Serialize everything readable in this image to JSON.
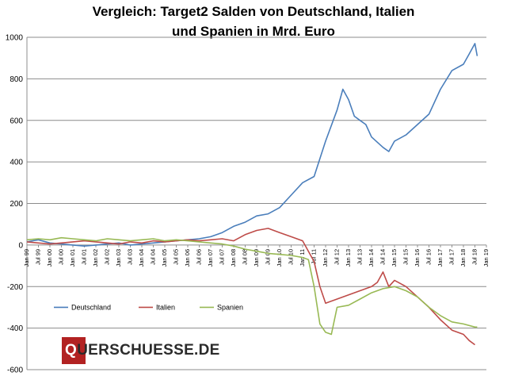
{
  "chart_data": {
    "type": "line",
    "title_lines": [
      "Vergleich: Target2 Salden von Deutschland, Italien",
      "und Spanien in Mrd. Euro"
    ],
    "ylim": [
      -600,
      1000
    ],
    "yticks": [
      1000,
      800,
      600,
      400,
      200,
      0,
      -200,
      -400,
      -600
    ],
    "xlim": [
      1999.0,
      2019.0
    ],
    "xticks": [
      {
        "label": "Jan 99",
        "x": 1999.0
      },
      {
        "label": "Jul 99",
        "x": 1999.5
      },
      {
        "label": "Jan 00",
        "x": 2000.0
      },
      {
        "label": "Jul 00",
        "x": 2000.5
      },
      {
        "label": "Jan 01",
        "x": 2001.0
      },
      {
        "label": "Jul 01",
        "x": 2001.5
      },
      {
        "label": "Jan 02",
        "x": 2002.0
      },
      {
        "label": "Jul 02",
        "x": 2002.5
      },
      {
        "label": "Jan 03",
        "x": 2003.0
      },
      {
        "label": "Jul 03",
        "x": 2003.5
      },
      {
        "label": "Jan 04",
        "x": 2004.0
      },
      {
        "label": "Jul 04",
        "x": 2004.5
      },
      {
        "label": "Jan 05",
        "x": 2005.0
      },
      {
        "label": "Jul 05",
        "x": 2005.5
      },
      {
        "label": "Jan 06",
        "x": 2006.0
      },
      {
        "label": "Jul 06",
        "x": 2006.5
      },
      {
        "label": "Jan 07",
        "x": 2007.0
      },
      {
        "label": "Jul 07",
        "x": 2007.5
      },
      {
        "label": "Jan 08",
        "x": 2008.0
      },
      {
        "label": "Jul 08",
        "x": 2008.5
      },
      {
        "label": "Jan 09",
        "x": 2009.0
      },
      {
        "label": "Jul 09",
        "x": 2009.5
      },
      {
        "label": "Jan 10",
        "x": 2010.0
      },
      {
        "label": "Jul 10",
        "x": 2010.5
      },
      {
        "label": "Jan 11",
        "x": 2011.0
      },
      {
        "label": "Jul 11",
        "x": 2011.5
      },
      {
        "label": "Jan 12",
        "x": 2012.0
      },
      {
        "label": "Jul 12",
        "x": 2012.5
      },
      {
        "label": "Jan 13",
        "x": 2013.0
      },
      {
        "label": "Jul 13",
        "x": 2013.5
      },
      {
        "label": "Jan 14",
        "x": 2014.0
      },
      {
        "label": "Jul 14",
        "x": 2014.5
      },
      {
        "label": "Jan 15",
        "x": 2015.0
      },
      {
        "label": "Jul 15",
        "x": 2015.5
      },
      {
        "label": "Jan 16",
        "x": 2016.0
      },
      {
        "label": "Jul 16",
        "x": 2016.5
      },
      {
        "label": "Jan 17",
        "x": 2017.0
      },
      {
        "label": "Jul 17",
        "x": 2017.5
      },
      {
        "label": "Jan 18",
        "x": 2018.0
      },
      {
        "label": "Jul 18",
        "x": 2018.5
      },
      {
        "label": "Jan 19",
        "x": 2019.0
      }
    ],
    "grid": true,
    "legend_position": "bottom-left",
    "series": [
      {
        "name": "Deutschland",
        "color": "#4a7ebb",
        "points": [
          [
            1999.0,
            15
          ],
          [
            1999.5,
            25
          ],
          [
            2000.0,
            10
          ],
          [
            2000.5,
            5
          ],
          [
            2001.0,
            0
          ],
          [
            2001.5,
            -5
          ],
          [
            2002.0,
            0
          ],
          [
            2002.5,
            5
          ],
          [
            2003.0,
            10
          ],
          [
            2003.5,
            0
          ],
          [
            2004.0,
            5
          ],
          [
            2004.5,
            10
          ],
          [
            2005.0,
            15
          ],
          [
            2005.5,
            20
          ],
          [
            2006.0,
            25
          ],
          [
            2006.5,
            30
          ],
          [
            2007.0,
            40
          ],
          [
            2007.5,
            60
          ],
          [
            2008.0,
            90
          ],
          [
            2008.5,
            110
          ],
          [
            2009.0,
            140
          ],
          [
            2009.5,
            150
          ],
          [
            2010.0,
            180
          ],
          [
            2010.5,
            240
          ],
          [
            2011.0,
            300
          ],
          [
            2011.5,
            330
          ],
          [
            2012.0,
            500
          ],
          [
            2012.5,
            650
          ],
          [
            2012.75,
            750
          ],
          [
            2013.0,
            700
          ],
          [
            2013.25,
            620
          ],
          [
            2013.5,
            600
          ],
          [
            2013.75,
            580
          ],
          [
            2014.0,
            520
          ],
          [
            2014.5,
            470
          ],
          [
            2014.75,
            450
          ],
          [
            2015.0,
            500
          ],
          [
            2015.5,
            530
          ],
          [
            2016.0,
            580
          ],
          [
            2016.5,
            630
          ],
          [
            2017.0,
            750
          ],
          [
            2017.5,
            840
          ],
          [
            2018.0,
            870
          ],
          [
            2018.25,
            920
          ],
          [
            2018.5,
            970
          ],
          [
            2018.6,
            910
          ]
        ]
      },
      {
        "name": "Italien",
        "color": "#be4b48",
        "points": [
          [
            1999.0,
            15
          ],
          [
            1999.5,
            10
          ],
          [
            2000.0,
            5
          ],
          [
            2000.5,
            10
          ],
          [
            2001.0,
            15
          ],
          [
            2001.5,
            20
          ],
          [
            2002.0,
            15
          ],
          [
            2002.5,
            10
          ],
          [
            2003.0,
            5
          ],
          [
            2003.5,
            15
          ],
          [
            2004.0,
            10
          ],
          [
            2004.5,
            20
          ],
          [
            2005.0,
            15
          ],
          [
            2005.5,
            20
          ],
          [
            2006.0,
            25
          ],
          [
            2006.5,
            20
          ],
          [
            2007.0,
            25
          ],
          [
            2007.5,
            30
          ],
          [
            2008.0,
            20
          ],
          [
            2008.5,
            50
          ],
          [
            2009.0,
            70
          ],
          [
            2009.5,
            80
          ],
          [
            2010.0,
            60
          ],
          [
            2010.5,
            40
          ],
          [
            2011.0,
            20
          ],
          [
            2011.5,
            -80
          ],
          [
            2011.75,
            -200
          ],
          [
            2012.0,
            -280
          ],
          [
            2012.5,
            -260
          ],
          [
            2013.0,
            -240
          ],
          [
            2013.5,
            -220
          ],
          [
            2014.0,
            -200
          ],
          [
            2014.25,
            -180
          ],
          [
            2014.5,
            -130
          ],
          [
            2014.75,
            -200
          ],
          [
            2015.0,
            -170
          ],
          [
            2015.5,
            -200
          ],
          [
            2016.0,
            -250
          ],
          [
            2016.5,
            -300
          ],
          [
            2017.0,
            -360
          ],
          [
            2017.5,
            -410
          ],
          [
            2018.0,
            -430
          ],
          [
            2018.25,
            -460
          ],
          [
            2018.5,
            -480
          ]
        ]
      },
      {
        "name": "Spanien",
        "color": "#98b954",
        "points": [
          [
            1999.0,
            25
          ],
          [
            1999.5,
            30
          ],
          [
            2000.0,
            25
          ],
          [
            2000.5,
            35
          ],
          [
            2001.0,
            30
          ],
          [
            2001.5,
            25
          ],
          [
            2002.0,
            20
          ],
          [
            2002.5,
            30
          ],
          [
            2003.0,
            25
          ],
          [
            2003.5,
            20
          ],
          [
            2004.0,
            25
          ],
          [
            2004.5,
            30
          ],
          [
            2005.0,
            20
          ],
          [
            2005.5,
            25
          ],
          [
            2006.0,
            20
          ],
          [
            2006.5,
            15
          ],
          [
            2007.0,
            10
          ],
          [
            2007.5,
            5
          ],
          [
            2008.0,
            -5
          ],
          [
            2008.5,
            -20
          ],
          [
            2009.0,
            -30
          ],
          [
            2009.5,
            -40
          ],
          [
            2010.0,
            -45
          ],
          [
            2010.5,
            -50
          ],
          [
            2011.0,
            -60
          ],
          [
            2011.25,
            -70
          ],
          [
            2011.5,
            -200
          ],
          [
            2011.75,
            -380
          ],
          [
            2012.0,
            -420
          ],
          [
            2012.25,
            -430
          ],
          [
            2012.5,
            -300
          ],
          [
            2013.0,
            -290
          ],
          [
            2013.5,
            -260
          ],
          [
            2014.0,
            -230
          ],
          [
            2014.5,
            -210
          ],
          [
            2015.0,
            -200
          ],
          [
            2015.5,
            -220
          ],
          [
            2016.0,
            -250
          ],
          [
            2016.5,
            -300
          ],
          [
            2017.0,
            -340
          ],
          [
            2017.5,
            -370
          ],
          [
            2018.0,
            -380
          ],
          [
            2018.5,
            -395
          ],
          [
            2018.6,
            -395
          ]
        ]
      }
    ],
    "watermark": "QUERSCHUESSE.DE"
  }
}
